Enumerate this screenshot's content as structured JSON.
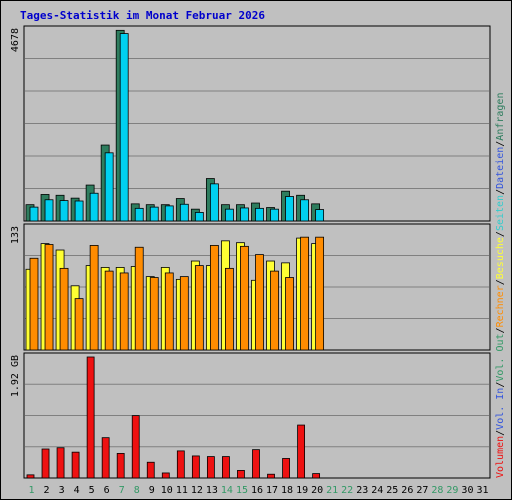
{
  "title": "Tages-Statistik im Monat Februar 2026",
  "colors": {
    "background": "#C0C0C0",
    "border": "#000000",
    "gridline": "#808080",
    "title": "#0000CC",
    "axis_text": "#000000",
    "weekday": "#000000",
    "weekend": "#339966",
    "anfragen": "#2E7D5E",
    "dateien": "#00D0F0",
    "seiten": "#33CCCC",
    "besuche": "#FFFF33",
    "rechner": "#FF8C00",
    "vol_out": "#339966",
    "vol_in": "#3355DD",
    "volumen": "#EE1111",
    "slash": "#000000"
  },
  "chart_data": [
    {
      "type": "bar",
      "name": "top",
      "ymax_label": "4678",
      "ylim": [
        0,
        4678
      ],
      "categories": [
        "1",
        "2",
        "3",
        "4",
        "5",
        "6",
        "7",
        "8",
        "9",
        "10",
        "11",
        "12",
        "13",
        "14",
        "15",
        "16",
        "17",
        "18",
        "19",
        "20",
        "21",
        "22",
        "23",
        "24",
        "25",
        "26",
        "27",
        "28",
        "29",
        "30",
        "31"
      ],
      "series": [
        {
          "name": "Anfragen",
          "color_key": "anfragen",
          "values": [
            400,
            650,
            630,
            560,
            880,
            1860,
            4670,
            420,
            400,
            400,
            550,
            290,
            1040,
            400,
            400,
            440,
            330,
            730,
            630,
            420,
            0,
            0,
            0,
            0,
            0,
            0,
            0,
            0,
            0,
            0,
            0
          ]
        },
        {
          "name": "Dateien",
          "color_key": "dateien",
          "values": [
            340,
            520,
            500,
            490,
            680,
            1670,
            4590,
            310,
            340,
            370,
            410,
            210,
            910,
            290,
            320,
            310,
            290,
            600,
            520,
            280,
            0,
            0,
            0,
            0,
            0,
            0,
            0,
            0,
            0,
            0,
            0
          ]
        }
      ],
      "legend": [
        "Anfragen",
        "Dateien",
        "Seiten"
      ]
    },
    {
      "type": "bar",
      "name": "middle",
      "ymax_label": "133",
      "ylim": [
        0,
        133
      ],
      "categories": [
        "1",
        "2",
        "3",
        "4",
        "5",
        "6",
        "7",
        "8",
        "9",
        "10",
        "11",
        "12",
        "13",
        "14",
        "15",
        "16",
        "17",
        "18",
        "19",
        "20",
        "21",
        "22",
        "23",
        "24",
        "25",
        "26",
        "27",
        "28",
        "29",
        "30",
        "31"
      ],
      "series": [
        {
          "name": "Besuche",
          "color_key": "besuche",
          "values": [
            88,
            116,
            109,
            70,
            92,
            90,
            90,
            91,
            80,
            90,
            77,
            97,
            92,
            119,
            117,
            76,
            97,
            95,
            122,
            116,
            0,
            0,
            0,
            0,
            0,
            0,
            0,
            0,
            0,
            0,
            0
          ]
        },
        {
          "name": "Rechner",
          "color_key": "rechner",
          "values": [
            100,
            115,
            89,
            56,
            114,
            86,
            84,
            112,
            79,
            84,
            80,
            92,
            114,
            89,
            113,
            104,
            86,
            79,
            123,
            123,
            0,
            0,
            0,
            0,
            0,
            0,
            0,
            0,
            0,
            0,
            0
          ]
        }
      ],
      "legend": [
        "Besuche",
        "Rechner"
      ]
    },
    {
      "type": "bar",
      "name": "bottom",
      "ymax_label": "1.92 GB",
      "ylim": [
        0,
        1.92
      ],
      "unit": "GB",
      "categories": [
        "1",
        "2",
        "3",
        "4",
        "5",
        "6",
        "7",
        "8",
        "9",
        "10",
        "11",
        "12",
        "13",
        "14",
        "15",
        "16",
        "17",
        "18",
        "19",
        "20",
        "21",
        "22",
        "23",
        "24",
        "25",
        "26",
        "27",
        "28",
        "29",
        "30",
        "31"
      ],
      "series": [
        {
          "name": "Volumen",
          "color_key": "volumen",
          "values": [
            0.05,
            0.46,
            0.48,
            0.41,
            1.92,
            0.64,
            0.39,
            0.99,
            0.25,
            0.08,
            0.43,
            0.35,
            0.34,
            0.34,
            0.12,
            0.45,
            0.06,
            0.31,
            0.84,
            0.07,
            0,
            0,
            0,
            0,
            0,
            0,
            0,
            0,
            0,
            0,
            0
          ]
        }
      ],
      "legend": [
        "Vol. Out",
        "Vol. In",
        "Volumen"
      ]
    }
  ],
  "x_labels": [
    {
      "text": "1",
      "weekend": true
    },
    {
      "text": "2",
      "weekend": false
    },
    {
      "text": "3",
      "weekend": false
    },
    {
      "text": "4",
      "weekend": false
    },
    {
      "text": "5",
      "weekend": false
    },
    {
      "text": "6",
      "weekend": false
    },
    {
      "text": "7",
      "weekend": true
    },
    {
      "text": "8",
      "weekend": true
    },
    {
      "text": "9",
      "weekend": false
    },
    {
      "text": "10",
      "weekend": false
    },
    {
      "text": "11",
      "weekend": false
    },
    {
      "text": "12",
      "weekend": false
    },
    {
      "text": "13",
      "weekend": false
    },
    {
      "text": "14",
      "weekend": true
    },
    {
      "text": "15",
      "weekend": true
    },
    {
      "text": "16",
      "weekend": false
    },
    {
      "text": "17",
      "weekend": false
    },
    {
      "text": "18",
      "weekend": false
    },
    {
      "text": "19",
      "weekend": false
    },
    {
      "text": "20",
      "weekend": false
    },
    {
      "text": "21",
      "weekend": true
    },
    {
      "text": "22",
      "weekend": true
    },
    {
      "text": "23",
      "weekend": false
    },
    {
      "text": "24",
      "weekend": false
    },
    {
      "text": "25",
      "weekend": false
    },
    {
      "text": "26",
      "weekend": false
    },
    {
      "text": "27",
      "weekend": false
    },
    {
      "text": "28",
      "weekend": true
    },
    {
      "text": "29",
      "weekend": true
    },
    {
      "text": "30",
      "weekend": false
    },
    {
      "text": "31",
      "weekend": false
    }
  ],
  "right_legend": {
    "top": [
      {
        "text": "Anfragen",
        "color_key": "anfragen"
      },
      {
        "text": "/",
        "color_key": "slash"
      },
      {
        "text": "Dateien",
        "color_key": "vol_in"
      },
      {
        "text": "/",
        "color_key": "slash"
      },
      {
        "text": "Seiten",
        "color_key": "seiten"
      },
      {
        "text": "/",
        "color_key": "slash"
      },
      {
        "text": "Besuche",
        "color_key": "besuche"
      },
      {
        "text": "/",
        "color_key": "slash"
      },
      {
        "text": "Rechner",
        "color_key": "rechner"
      },
      {
        "text": "/",
        "color_key": "slash"
      },
      {
        "text": "Vol. Out",
        "color_key": "vol_out"
      },
      {
        "text": "/",
        "color_key": "slash"
      },
      {
        "text": "Vol. In",
        "color_key": "vol_in"
      },
      {
        "text": "/",
        "color_key": "slash"
      },
      {
        "text": "Volumen",
        "color_key": "volumen"
      }
    ]
  }
}
